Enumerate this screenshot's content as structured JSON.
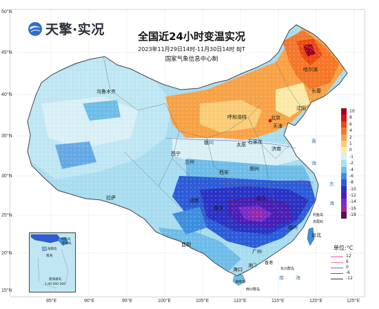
{
  "brand": {
    "logo_text": "天擎·实况"
  },
  "title": "全国近24小时变温实况",
  "subtitle": "2023年11月29日14时-11月30日14时 BJT",
  "publisher": "国家气象信息中心制",
  "colors": {
    "cold_max": "#3a0a6e",
    "cold": "#2c3fd0",
    "neutral": "#bfe7f3",
    "warm": "#f5b04a",
    "warm_max": "#e84a12"
  },
  "lat_labels": [
    "50°N",
    "45°N",
    "40°N",
    "35°N",
    "30°N",
    "25°N",
    "20°N",
    "15°N"
  ],
  "lon_labels": [
    "85°E",
    "90°E",
    "95°E",
    "100°E",
    "105°E",
    "110°E",
    "115°E",
    "120°E",
    "125°E"
  ],
  "legend": {
    "entries": [
      {
        "label": "10",
        "color": "#a0001e"
      },
      {
        "label": "8",
        "color": "#d4141e"
      },
      {
        "label": "6",
        "color": "#eb4a14"
      },
      {
        "label": "4",
        "color": "#f5782a"
      },
      {
        "label": "2",
        "color": "#f8a348"
      },
      {
        "label": "1",
        "color": "#fbcd78"
      },
      {
        "label": "0",
        "color": "#fbe9a6"
      },
      {
        "label": "-1",
        "color": "#d9f0f6"
      },
      {
        "label": "-2",
        "color": "#a9ddf0"
      },
      {
        "label": "-4",
        "color": "#6fbde8"
      },
      {
        "label": "-6",
        "color": "#3d8fe0"
      },
      {
        "label": "-8",
        "color": "#2c5dd8"
      },
      {
        "label": "-10",
        "color": "#2a33c4"
      },
      {
        "label": "-12",
        "color": "#4a1fb6"
      },
      {
        "label": "-14",
        "color": "#7a2cc8"
      },
      {
        "label": "-16",
        "color": "#9a2aa8"
      },
      {
        "label": "-18",
        "color": "#5a0f52"
      }
    ],
    "unit": "单位:°C"
  },
  "isolines": [
    {
      "label": "12",
      "color": "#e0509a"
    },
    {
      "label": "6",
      "color": "#e07c8a"
    },
    {
      "label": "0",
      "color": "#6a6ad8"
    },
    {
      "label": "-6",
      "color": "#7a3cb0"
    },
    {
      "label": "-12",
      "color": "#333333"
    }
  ],
  "cities": [
    {
      "id": "harbin",
      "name": "哈尔滨"
    },
    {
      "id": "changchun",
      "name": "长春"
    },
    {
      "id": "shenyang",
      "name": "沈阳"
    },
    {
      "id": "urumqi",
      "name": "乌鲁木齐"
    },
    {
      "id": "hohhot",
      "name": "呼和浩特"
    },
    {
      "id": "beijing",
      "name": "北京"
    },
    {
      "id": "tianjin",
      "name": "天津"
    },
    {
      "id": "yinchuan",
      "name": "银川"
    },
    {
      "id": "taiyuan",
      "name": "太原"
    },
    {
      "id": "shijiazhuang",
      "name": "石家庄"
    },
    {
      "id": "jinan",
      "name": "济南"
    },
    {
      "id": "xining",
      "name": "西宁"
    },
    {
      "id": "lanzhou",
      "name": "兰州"
    },
    {
      "id": "zhengzhou",
      "name": "郑州"
    },
    {
      "id": "xian",
      "name": "西安"
    },
    {
      "id": "lhasa",
      "name": "拉萨"
    },
    {
      "id": "chengdu",
      "name": "成都"
    },
    {
      "id": "wuhan",
      "name": "武汉"
    },
    {
      "id": "chongqing",
      "name": "重庆"
    },
    {
      "id": "fuzhou",
      "name": "福州"
    },
    {
      "id": "guangzhou",
      "name": "广州"
    },
    {
      "id": "kunming",
      "name": "昆明"
    },
    {
      "id": "taibei",
      "name": "台北"
    },
    {
      "id": "haikou",
      "name": "海口"
    },
    {
      "id": "diaoyu",
      "name": "钓鱼岛"
    },
    {
      "id": "chiwei",
      "name": "赤尾屿"
    },
    {
      "id": "hongkong",
      "name": "香港"
    },
    {
      "id": "macau",
      "name": "澳门"
    },
    {
      "id": "dongsha",
      "name": "东沙群岛"
    },
    {
      "id": "xisha",
      "name": "西沙群岛"
    },
    {
      "id": "hainan_island",
      "name": "海南岛"
    }
  ],
  "seas": [
    {
      "id": "yellow",
      "name": "黄"
    },
    {
      "id": "hai",
      "name": "海"
    },
    {
      "id": "east",
      "name": "东"
    },
    {
      "id": "east_hai",
      "name": "海"
    },
    {
      "id": "south",
      "name": "南"
    },
    {
      "id": "south_hai",
      "name": "海"
    }
  ],
  "inset": {
    "labels": [
      "钓鱼岛",
      "赤尾屿",
      "海南岛",
      "南海",
      "南海诸岛"
    ],
    "scale": "1:40 000 000"
  }
}
